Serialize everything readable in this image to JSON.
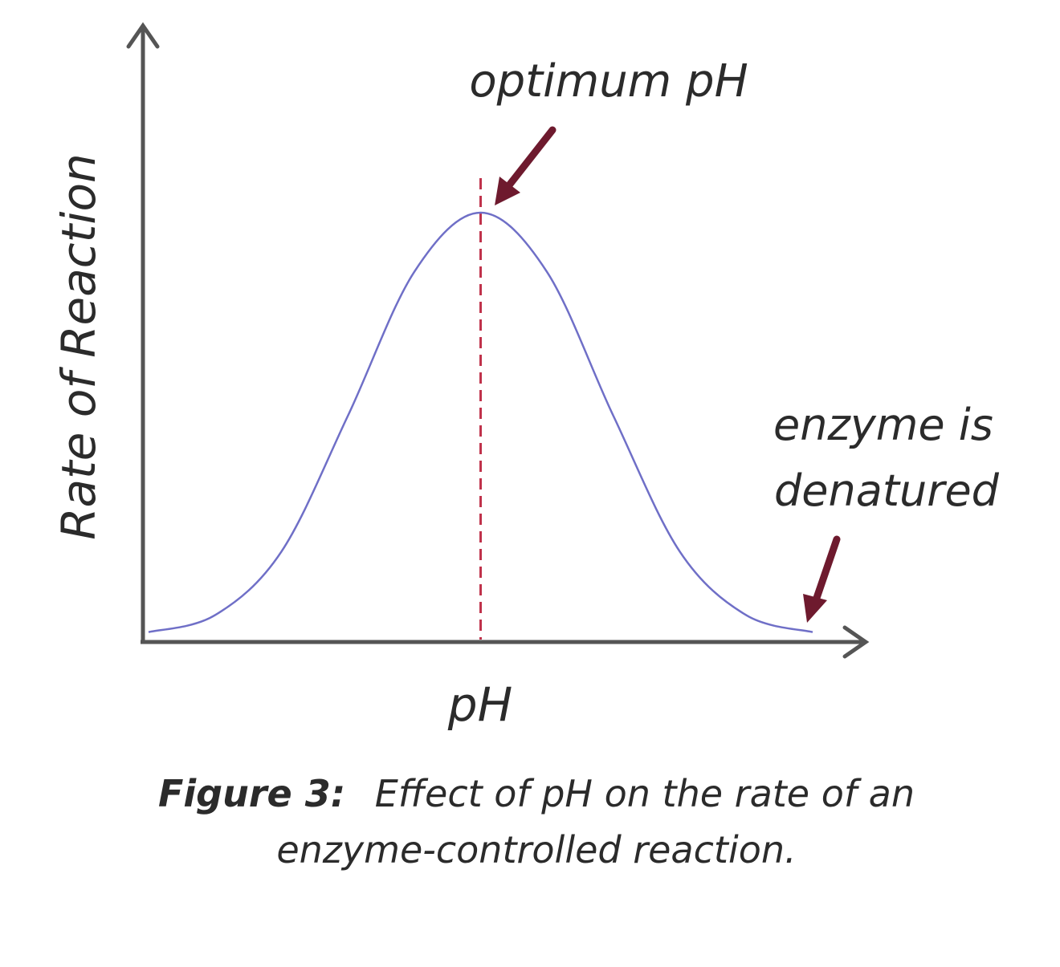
{
  "chart_data": {
    "type": "line",
    "title": "",
    "xlabel": "pH",
    "ylabel": "Rate of Reaction",
    "grid": false,
    "series": [
      {
        "x": [
          0,
          1,
          2,
          3,
          4,
          5,
          6,
          7,
          8,
          9,
          10
        ],
        "y": [
          0.01,
          0.05,
          0.2,
          0.52,
          0.86,
          1.0,
          0.86,
          0.52,
          0.2,
          0.05,
          0.01
        ]
      }
    ],
    "annotations": [
      {
        "text": "optimum pH",
        "x": 5
      },
      {
        "text_lines": [
          "enzyme is",
          "denatured"
        ],
        "x": 10
      }
    ],
    "caption": {
      "label": "Figure 3:",
      "lines": [
        "Effect of pH on the rate of an",
        "enzyme-controlled reaction."
      ]
    },
    "colors": {
      "curve": "#6f6fc7",
      "optimum_line": "#c0324b",
      "arrows": "#6e1a2e",
      "axes": "#555555"
    }
  }
}
